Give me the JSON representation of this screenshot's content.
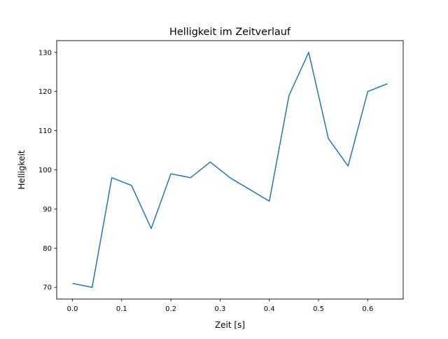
{
  "chart_data": {
    "type": "line",
    "title": "Helligkeit im Zeitverlauf",
    "xlabel": "Zeit [s]",
    "ylabel": "Helligkeit",
    "xlim": [
      -0.032,
      0.672
    ],
    "ylim": [
      67,
      133
    ],
    "xticks": [
      0.0,
      0.1,
      0.2,
      0.3,
      0.4,
      0.5,
      0.6
    ],
    "xtick_labels": [
      "0.0",
      "0.1",
      "0.2",
      "0.3",
      "0.4",
      "0.5",
      "0.6"
    ],
    "yticks": [
      70,
      80,
      90,
      100,
      110,
      120,
      130
    ],
    "ytick_labels": [
      "70",
      "80",
      "90",
      "100",
      "110",
      "120",
      "130"
    ],
    "grid": false,
    "series": [
      {
        "name": "Helligkeit",
        "color": "#1f77b4",
        "x": [
          0.0,
          0.04,
          0.08,
          0.12,
          0.16,
          0.2,
          0.24,
          0.28,
          0.32,
          0.36,
          0.4,
          0.44,
          0.48,
          0.52,
          0.56,
          0.6,
          0.64
        ],
        "y": [
          71,
          70,
          98,
          96,
          85,
          99,
          98,
          102,
          98,
          95,
          92,
          119,
          130,
          108,
          101,
          120,
          122
        ]
      }
    ]
  }
}
